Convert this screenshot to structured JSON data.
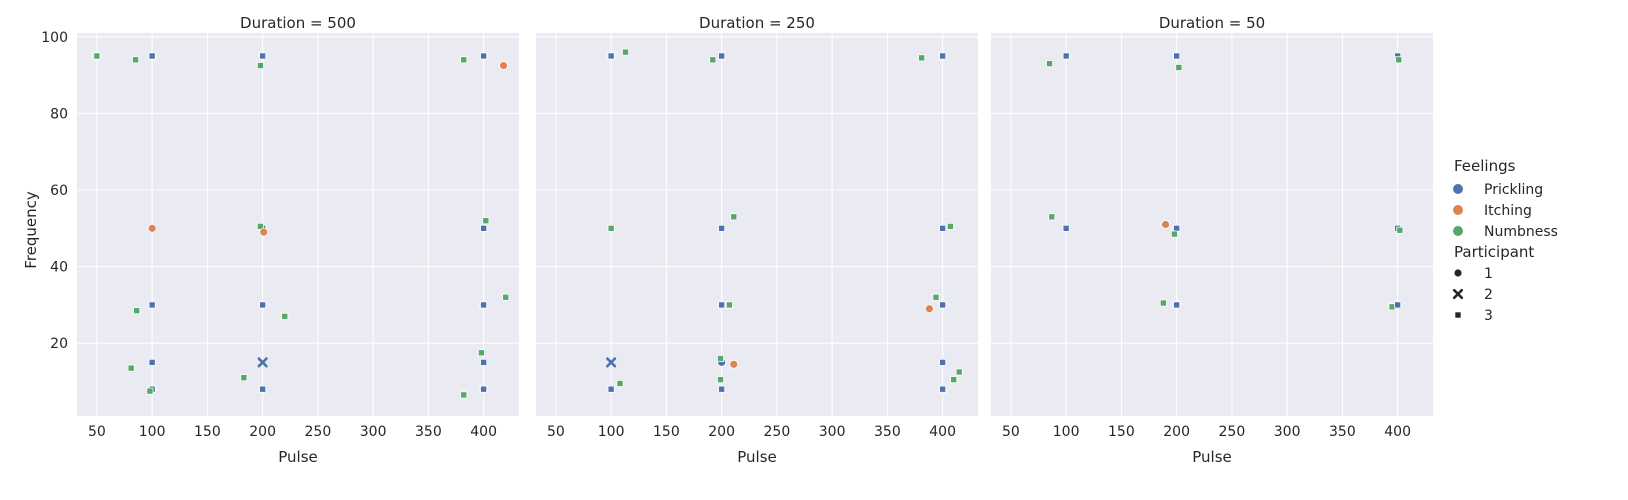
{
  "chart_data": {
    "type": "scatter",
    "facet_label": "Duration",
    "facets": [
      {
        "title": "Duration = 500",
        "points": [
          {
            "x": 50,
            "y": 95,
            "feeling": "Prickling",
            "participant": "1"
          },
          {
            "x": 50,
            "y": 95,
            "feeling": "Numbness",
            "participant": "3"
          },
          {
            "x": 85,
            "y": 94,
            "feeling": "Numbness",
            "participant": "3"
          },
          {
            "x": 100,
            "y": 95,
            "feeling": "Prickling",
            "participant": "1"
          },
          {
            "x": 100,
            "y": 95,
            "feeling": "Prickling",
            "participant": "3"
          },
          {
            "x": 200,
            "y": 95,
            "feeling": "Prickling",
            "participant": "1"
          },
          {
            "x": 200,
            "y": 95,
            "feeling": "Prickling",
            "participant": "3"
          },
          {
            "x": 198,
            "y": 92.5,
            "feeling": "Numbness",
            "participant": "3"
          },
          {
            "x": 382,
            "y": 94,
            "feeling": "Numbness",
            "participant": "3"
          },
          {
            "x": 400,
            "y": 95,
            "feeling": "Prickling",
            "participant": "1"
          },
          {
            "x": 400,
            "y": 95,
            "feeling": "Prickling",
            "participant": "3"
          },
          {
            "x": 418,
            "y": 92.5,
            "feeling": "Itching",
            "participant": "1"
          },
          {
            "x": 100,
            "y": 50,
            "feeling": "Itching",
            "participant": "1"
          },
          {
            "x": 200,
            "y": 50,
            "feeling": "Prickling",
            "participant": "3"
          },
          {
            "x": 198,
            "y": 50.5,
            "feeling": "Numbness",
            "participant": "3"
          },
          {
            "x": 201,
            "y": 49,
            "feeling": "Itching",
            "participant": "1"
          },
          {
            "x": 400,
            "y": 50,
            "feeling": "Prickling",
            "participant": "3"
          },
          {
            "x": 402,
            "y": 52,
            "feeling": "Numbness",
            "participant": "3"
          },
          {
            "x": 100,
            "y": 30,
            "feeling": "Prickling",
            "participant": "3"
          },
          {
            "x": 86,
            "y": 28.5,
            "feeling": "Numbness",
            "participant": "3"
          },
          {
            "x": 200,
            "y": 30,
            "feeling": "Prickling",
            "participant": "1"
          },
          {
            "x": 200,
            "y": 30,
            "feeling": "Prickling",
            "participant": "3"
          },
          {
            "x": 220,
            "y": 27,
            "feeling": "Numbness",
            "participant": "3"
          },
          {
            "x": 400,
            "y": 30,
            "feeling": "Prickling",
            "participant": "1"
          },
          {
            "x": 400,
            "y": 30,
            "feeling": "Prickling",
            "participant": "3"
          },
          {
            "x": 420,
            "y": 32,
            "feeling": "Numbness",
            "participant": "3"
          },
          {
            "x": 100,
            "y": 15,
            "feeling": "Prickling",
            "participant": "3"
          },
          {
            "x": 81,
            "y": 13.5,
            "feeling": "Numbness",
            "participant": "3"
          },
          {
            "x": 200,
            "y": 15,
            "feeling": "Prickling",
            "participant": "2"
          },
          {
            "x": 183,
            "y": 11,
            "feeling": "Numbness",
            "participant": "3"
          },
          {
            "x": 400,
            "y": 15,
            "feeling": "Prickling",
            "participant": "3"
          },
          {
            "x": 398,
            "y": 17.5,
            "feeling": "Numbness",
            "participant": "3"
          },
          {
            "x": 100,
            "y": 8,
            "feeling": "Itching",
            "participant": "1"
          },
          {
            "x": 100,
            "y": 8,
            "feeling": "Prickling",
            "participant": "3"
          },
          {
            "x": 98,
            "y": 7.5,
            "feeling": "Numbness",
            "participant": "3"
          },
          {
            "x": 200,
            "y": 8,
            "feeling": "Prickling",
            "participant": "3"
          },
          {
            "x": 400,
            "y": 8,
            "feeling": "Prickling",
            "participant": "1"
          },
          {
            "x": 400,
            "y": 8,
            "feeling": "Prickling",
            "participant": "3"
          },
          {
            "x": 382,
            "y": 6.5,
            "feeling": "Numbness",
            "participant": "3"
          }
        ]
      },
      {
        "title": "Duration = 250",
        "points": [
          {
            "x": 100,
            "y": 95,
            "feeling": "Itching",
            "participant": "1"
          },
          {
            "x": 100,
            "y": 95,
            "feeling": "Prickling",
            "participant": "3"
          },
          {
            "x": 113,
            "y": 96,
            "feeling": "Numbness",
            "participant": "3"
          },
          {
            "x": 200,
            "y": 95,
            "feeling": "Prickling",
            "participant": "3"
          },
          {
            "x": 192,
            "y": 94,
            "feeling": "Numbness",
            "participant": "3"
          },
          {
            "x": 400,
            "y": 95,
            "feeling": "Prickling",
            "participant": "1"
          },
          {
            "x": 400,
            "y": 95,
            "feeling": "Prickling",
            "participant": "3"
          },
          {
            "x": 381,
            "y": 94.5,
            "feeling": "Numbness",
            "participant": "3"
          },
          {
            "x": 100,
            "y": 50,
            "feeling": "Numbness",
            "participant": "3"
          },
          {
            "x": 200,
            "y": 50,
            "feeling": "Prickling",
            "participant": "3"
          },
          {
            "x": 211,
            "y": 53,
            "feeling": "Numbness",
            "participant": "3"
          },
          {
            "x": 400,
            "y": 50,
            "feeling": "Prickling",
            "participant": "3"
          },
          {
            "x": 407,
            "y": 50.5,
            "feeling": "Numbness",
            "participant": "3"
          },
          {
            "x": 200,
            "y": 30,
            "feeling": "Prickling",
            "participant": "1"
          },
          {
            "x": 200,
            "y": 30,
            "feeling": "Prickling",
            "participant": "3"
          },
          {
            "x": 207,
            "y": 30,
            "feeling": "Numbness",
            "participant": "3"
          },
          {
            "x": 400,
            "y": 30,
            "feeling": "Prickling",
            "participant": "1"
          },
          {
            "x": 400,
            "y": 30,
            "feeling": "Prickling",
            "participant": "3"
          },
          {
            "x": 394,
            "y": 32,
            "feeling": "Numbness",
            "participant": "3"
          },
          {
            "x": 388,
            "y": 29,
            "feeling": "Itching",
            "participant": "1"
          },
          {
            "x": 100,
            "y": 15,
            "feeling": "Prickling",
            "participant": "2"
          },
          {
            "x": 108,
            "y": 9.5,
            "feeling": "Numbness",
            "participant": "3"
          },
          {
            "x": 200,
            "y": 15,
            "feeling": "Prickling",
            "participant": "1"
          },
          {
            "x": 199,
            "y": 16,
            "feeling": "Numbness",
            "participant": "3"
          },
          {
            "x": 211,
            "y": 14.5,
            "feeling": "Itching",
            "participant": "1"
          },
          {
            "x": 199,
            "y": 10.5,
            "feeling": "Numbness",
            "participant": "3"
          },
          {
            "x": 400,
            "y": 15,
            "feeling": "Prickling",
            "participant": "1"
          },
          {
            "x": 400,
            "y": 15,
            "feeling": "Prickling",
            "participant": "3"
          },
          {
            "x": 415,
            "y": 12.5,
            "feeling": "Numbness",
            "participant": "3"
          },
          {
            "x": 410,
            "y": 10.5,
            "feeling": "Numbness",
            "participant": "3"
          },
          {
            "x": 100,
            "y": 8,
            "feeling": "Prickling",
            "participant": "3"
          },
          {
            "x": 200,
            "y": 8,
            "feeling": "Prickling",
            "participant": "3"
          },
          {
            "x": 400,
            "y": 8,
            "feeling": "Prickling",
            "participant": "1"
          },
          {
            "x": 400,
            "y": 8,
            "feeling": "Prickling",
            "participant": "3"
          }
        ]
      },
      {
        "title": "Duration = 50",
        "points": [
          {
            "x": 85,
            "y": 93,
            "feeling": "Numbness",
            "participant": "3"
          },
          {
            "x": 100,
            "y": 95,
            "feeling": "Prickling",
            "participant": "3"
          },
          {
            "x": 200,
            "y": 95,
            "feeling": "Prickling",
            "participant": "3"
          },
          {
            "x": 202,
            "y": 92,
            "feeling": "Numbness",
            "participant": "3"
          },
          {
            "x": 400,
            "y": 95,
            "feeling": "Prickling",
            "participant": "3"
          },
          {
            "x": 401,
            "y": 94,
            "feeling": "Numbness",
            "participant": "3"
          },
          {
            "x": 87,
            "y": 53,
            "feeling": "Numbness",
            "participant": "3"
          },
          {
            "x": 100,
            "y": 50,
            "feeling": "Prickling",
            "participant": "3"
          },
          {
            "x": 190,
            "y": 51,
            "feeling": "Itching",
            "participant": "1"
          },
          {
            "x": 200,
            "y": 50,
            "feeling": "Prickling",
            "participant": "1"
          },
          {
            "x": 200,
            "y": 50,
            "feeling": "Prickling",
            "participant": "3"
          },
          {
            "x": 198,
            "y": 48.5,
            "feeling": "Numbness",
            "participant": "3"
          },
          {
            "x": 400,
            "y": 50,
            "feeling": "Prickling",
            "participant": "3"
          },
          {
            "x": 402,
            "y": 49.5,
            "feeling": "Numbness",
            "participant": "3"
          },
          {
            "x": 188,
            "y": 30.5,
            "feeling": "Numbness",
            "participant": "3"
          },
          {
            "x": 200,
            "y": 30,
            "feeling": "Prickling",
            "participant": "1"
          },
          {
            "x": 200,
            "y": 30,
            "feeling": "Prickling",
            "participant": "3"
          },
          {
            "x": 395,
            "y": 29.5,
            "feeling": "Numbness",
            "participant": "3"
          },
          {
            "x": 400,
            "y": 30,
            "feeling": "Prickling",
            "participant": "3"
          }
        ]
      }
    ],
    "xlabel": "Pulse",
    "ylabel": "Frequency",
    "xlim": [
      32,
      432
    ],
    "ylim": [
      1,
      101
    ],
    "xticks": [
      50,
      100,
      150,
      200,
      250,
      300,
      350,
      400
    ],
    "yticks": [
      20,
      40,
      60,
      80,
      100
    ],
    "grid": true,
    "sharey": true,
    "legend": {
      "placement": "right",
      "hue_title": "Feelings",
      "hue": [
        {
          "label": "Prickling",
          "color": "#4c72b0"
        },
        {
          "label": "Itching",
          "color": "#dd8452"
        },
        {
          "label": "Numbness",
          "color": "#55a868"
        }
      ],
      "style_title": "Participant",
      "style": [
        {
          "label": "1",
          "marker": "circle"
        },
        {
          "label": "2",
          "marker": "x"
        },
        {
          "label": "3",
          "marker": "square"
        }
      ]
    },
    "colors": {
      "panel_bg": "#eaeaf2",
      "grid": "#ffffff",
      "marker_edge": "#ffffff"
    }
  }
}
